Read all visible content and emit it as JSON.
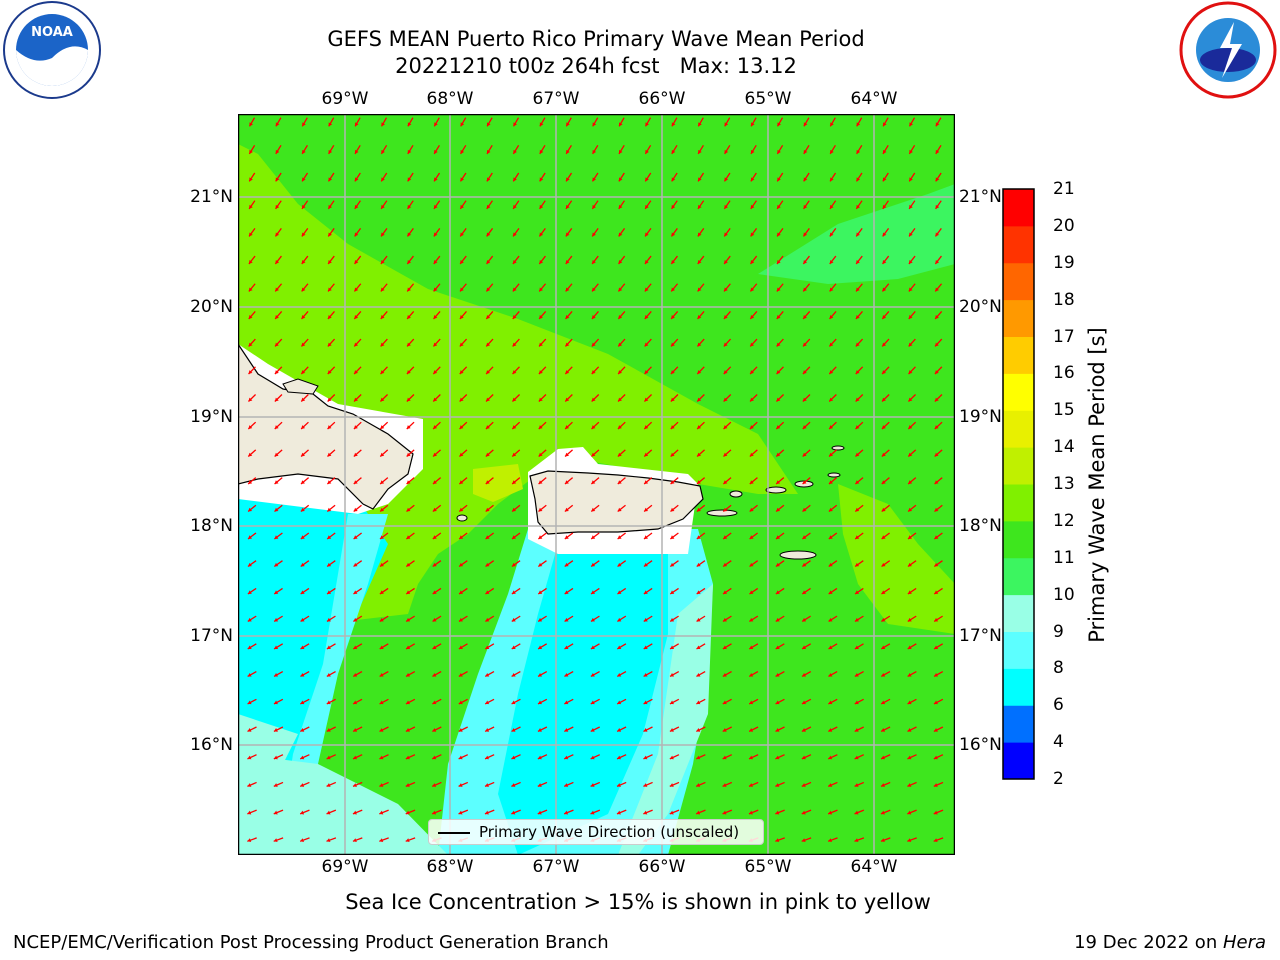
{
  "title_line1": "GEFS MEAN Puerto Rico Primary Wave Mean Period",
  "title_line2": "20221210 t00z 264h fcst   Max: 13.12",
  "map": {
    "lon_ticks": [
      "69°W",
      "68°W",
      "67°W",
      "66°W",
      "65°W",
      "64°W"
    ],
    "lat_ticks": [
      "21°N",
      "20°N",
      "19°N",
      "18°N",
      "17°N",
      "16°N"
    ],
    "arrow_color": "#ff0000",
    "land_color": "#efebdc"
  },
  "legend": {
    "label": "Primary Wave Direction (unscaled)"
  },
  "colorbar": {
    "label": "Primary Wave Mean Period [s]",
    "ticks": [
      "2",
      "4",
      "6",
      "8",
      "9",
      "10",
      "11",
      "12",
      "13",
      "14",
      "15",
      "16",
      "17",
      "18",
      "19",
      "20",
      "21"
    ],
    "colors": [
      "#0000ff",
      "#0070ff",
      "#00ffff",
      "#5cffff",
      "#99ffe6",
      "#3cf560",
      "#3ee61e",
      "#80f000",
      "#c0f000",
      "#e8f000",
      "#ffff00",
      "#ffcc00",
      "#ff9900",
      "#ff6600",
      "#ff3300",
      "#ff0000"
    ]
  },
  "note": "Sea Ice Concentration > 15% is shown in pink to yellow",
  "footer": {
    "left": "NCEP/EMC/Verification Post Processing Product Generation Branch",
    "right_prefix": "19 Dec 2022 on ",
    "right_host": "Hera"
  }
}
